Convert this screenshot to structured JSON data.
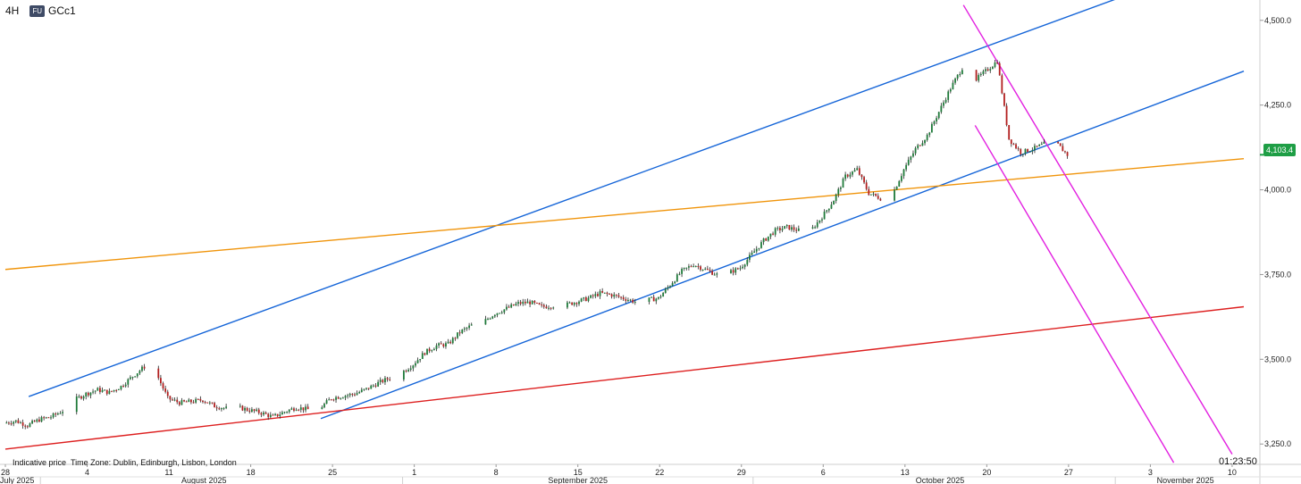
{
  "header": {
    "timeframe": "4H",
    "badge": "FU",
    "symbol": "GCc1"
  },
  "footer": {
    "indicative": "Indicative price",
    "timezone": "Time Zone: Dublin, Edinburgh, Lisbon, London",
    "clock": "01:23:50"
  },
  "price_tag": {
    "label": "4,103.4",
    "value": 4103.4,
    "color": "#1e9e45"
  },
  "colors": {
    "bull_candle": "#1f7a3a",
    "bear_candle": "#b32020",
    "channel": "#1565d8",
    "orange_line": "#f0940a",
    "red_line": "#dd1f1f",
    "magenta_channel": "#e21fe0"
  },
  "chart_data": {
    "type": "candlestick",
    "timeframe": "4H",
    "symbol": "GCc1",
    "ylim": [
      3190,
      4560
    ],
    "xlim": [
      "2025-07-28",
      "2025-11-11"
    ],
    "y_ticks": [
      {
        "value": 3250,
        "label": "3,250.0"
      },
      {
        "value": 3500,
        "label": "3,500.0"
      },
      {
        "value": 3750,
        "label": "3,750.0"
      },
      {
        "value": 4000,
        "label": "4,000.0"
      },
      {
        "value": 4250,
        "label": "4,250.0"
      },
      {
        "value": 4500,
        "label": "4,500.0"
      }
    ],
    "x_ticks": [
      {
        "date": "2025-07-28",
        "label": "28"
      },
      {
        "date": "2025-08-04",
        "label": "4"
      },
      {
        "date": "2025-08-11",
        "label": "11"
      },
      {
        "date": "2025-08-18",
        "label": "18"
      },
      {
        "date": "2025-08-25",
        "label": "25"
      },
      {
        "date": "2025-09-01",
        "label": "1"
      },
      {
        "date": "2025-09-08",
        "label": "8"
      },
      {
        "date": "2025-09-15",
        "label": "15"
      },
      {
        "date": "2025-09-22",
        "label": "22"
      },
      {
        "date": "2025-09-29",
        "label": "29"
      },
      {
        "date": "2025-10-06",
        "label": "6"
      },
      {
        "date": "2025-10-13",
        "label": "13"
      },
      {
        "date": "2025-10-20",
        "label": "20"
      },
      {
        "date": "2025-10-27",
        "label": "27"
      },
      {
        "date": "2025-11-03",
        "label": "3"
      },
      {
        "date": "2025-11-10",
        "label": "10"
      }
    ],
    "month_labels": [
      {
        "label": "July 2025",
        "date": "2025-07-29",
        "sep": "2025-07-31"
      },
      {
        "label": "August 2025",
        "date": "2025-08-14",
        "sep": "2025-08-31"
      },
      {
        "label": "September 2025",
        "date": "2025-09-15",
        "sep": "2025-09-30"
      },
      {
        "label": "October 2025",
        "date": "2025-10-16",
        "sep": "2025-10-31"
      },
      {
        "label": "November 2025",
        "date": "2025-11-06",
        "sep": ""
      }
    ],
    "close_path": [
      [
        "2025-07-28",
        3312
      ],
      [
        "2025-07-29",
        3318
      ],
      [
        "2025-07-30",
        3305
      ],
      [
        "2025-07-31",
        3322
      ],
      [
        "2025-08-01",
        3330
      ],
      [
        "2025-08-02",
        3348
      ],
      [
        "2025-08-03",
        3380
      ],
      [
        "2025-08-04",
        3398
      ],
      [
        "2025-08-05",
        3410
      ],
      [
        "2025-08-06",
        3402
      ],
      [
        "2025-08-07",
        3420
      ],
      [
        "2025-08-08",
        3450
      ],
      [
        "2025-08-09",
        3478
      ],
      [
        "2025-08-10",
        3460
      ],
      [
        "2025-08-11",
        3385
      ],
      [
        "2025-08-12",
        3372
      ],
      [
        "2025-08-13",
        3375
      ],
      [
        "2025-08-14",
        3380
      ],
      [
        "2025-08-15",
        3362
      ],
      [
        "2025-08-16",
        3355
      ],
      [
        "2025-08-17",
        3358
      ],
      [
        "2025-08-18",
        3350
      ],
      [
        "2025-08-19",
        3342
      ],
      [
        "2025-08-20",
        3330
      ],
      [
        "2025-08-21",
        3345
      ],
      [
        "2025-08-22",
        3358
      ],
      [
        "2025-08-23",
        3352
      ],
      [
        "2025-08-24",
        3355
      ],
      [
        "2025-08-25",
        3385
      ],
      [
        "2025-08-26",
        3392
      ],
      [
        "2025-08-27",
        3398
      ],
      [
        "2025-08-28",
        3412
      ],
      [
        "2025-08-29",
        3430
      ],
      [
        "2025-08-30",
        3445
      ],
      [
        "2025-08-31",
        3460
      ],
      [
        "2025-09-01",
        3485
      ],
      [
        "2025-09-02",
        3520
      ],
      [
        "2025-09-03",
        3540
      ],
      [
        "2025-09-04",
        3545
      ],
      [
        "2025-09-05",
        3580
      ],
      [
        "2025-09-06",
        3600
      ],
      [
        "2025-09-07",
        3610
      ],
      [
        "2025-09-08",
        3635
      ],
      [
        "2025-09-09",
        3650
      ],
      [
        "2025-09-10",
        3665
      ],
      [
        "2025-09-11",
        3668
      ],
      [
        "2025-09-12",
        3655
      ],
      [
        "2025-09-13",
        3658
      ],
      [
        "2025-09-14",
        3660
      ],
      [
        "2025-09-15",
        3670
      ],
      [
        "2025-09-16",
        3680
      ],
      [
        "2025-09-17",
        3695
      ],
      [
        "2025-09-18",
        3690
      ],
      [
        "2025-09-19",
        3680
      ],
      [
        "2025-09-20",
        3670
      ],
      [
        "2025-09-21",
        3675
      ],
      [
        "2025-09-22",
        3680
      ],
      [
        "2025-09-23",
        3720
      ],
      [
        "2025-09-24",
        3760
      ],
      [
        "2025-09-25",
        3780
      ],
      [
        "2025-09-26",
        3765
      ],
      [
        "2025-09-27",
        3750
      ],
      [
        "2025-09-28",
        3755
      ],
      [
        "2025-09-29",
        3770
      ],
      [
        "2025-09-30",
        3810
      ],
      [
        "2025-10-01",
        3850
      ],
      [
        "2025-10-02",
        3880
      ],
      [
        "2025-10-03",
        3890
      ],
      [
        "2025-10-04",
        3880
      ],
      [
        "2025-10-05",
        3878
      ],
      [
        "2025-10-06",
        3920
      ],
      [
        "2025-10-07",
        3970
      ],
      [
        "2025-10-08",
        4040
      ],
      [
        "2025-10-09",
        4060
      ],
      [
        "2025-10-10",
        3990
      ],
      [
        "2025-10-11",
        3975
      ],
      [
        "2025-10-12",
        3985
      ],
      [
        "2025-10-13",
        4060
      ],
      [
        "2025-10-14",
        4120
      ],
      [
        "2025-10-15",
        4160
      ],
      [
        "2025-10-16",
        4230
      ],
      [
        "2025-10-17",
        4300
      ],
      [
        "2025-10-18",
        4360
      ],
      [
        "2025-10-19",
        4320
      ],
      [
        "2025-10-20",
        4350
      ],
      [
        "2025-10-21",
        4380
      ],
      [
        "2025-10-22",
        4150
      ],
      [
        "2025-10-23",
        4110
      ],
      [
        "2025-10-24",
        4120
      ],
      [
        "2025-10-25",
        4135
      ],
      [
        "2025-10-26",
        4140
      ],
      [
        "2025-10-27",
        4103
      ]
    ],
    "trendlines": [
      {
        "color": "#1565d8",
        "from": [
          "2025-07-30",
          3390
        ],
        "to": [
          "2025-11-03",
          4600
        ]
      },
      {
        "color": "#1565d8",
        "from": [
          "2025-08-24",
          3325
        ],
        "to": [
          "2025-11-11",
          4350
        ]
      },
      {
        "color": "#f0940a",
        "from": [
          "2025-07-28",
          3765
        ],
        "to": [
          "2025-11-11",
          4092
        ]
      },
      {
        "color": "#dd1f1f",
        "from": [
          "2025-07-28",
          3235
        ],
        "to": [
          "2025-11-11",
          3655
        ]
      },
      {
        "color": "#e21fe0",
        "from": [
          "2025-10-18",
          4545
        ],
        "to": [
          "2025-11-10",
          3220
        ]
      },
      {
        "color": "#e21fe0",
        "from": [
          "2025-10-19",
          4190
        ],
        "to": [
          "2025-11-05",
          3195
        ]
      }
    ]
  }
}
